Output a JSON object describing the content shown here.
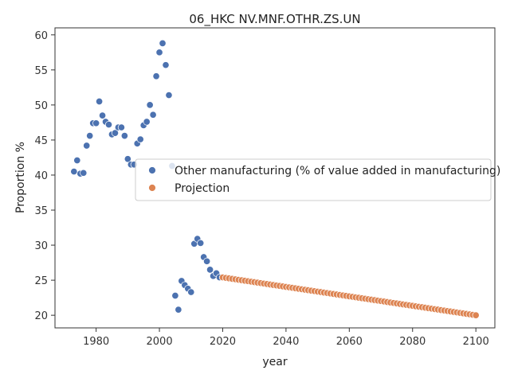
{
  "chart_data": {
    "type": "scatter",
    "title": "06_HKC NV.MNF.OTHR.ZS.UN",
    "xlabel": "year",
    "ylabel": "Proportion %",
    "xlim": [
      1967,
      2106
    ],
    "ylim": [
      18.2,
      61.0
    ],
    "xticks": [
      1980,
      2000,
      2020,
      2040,
      2060,
      2080,
      2100
    ],
    "yticks": [
      20,
      25,
      30,
      35,
      40,
      45,
      50,
      55,
      60
    ],
    "grid": false,
    "legend_position": "center-right",
    "series": [
      {
        "name": "Other manufacturing (% of value added in manufacturing)",
        "color": "#4c72b0",
        "x": [
          1973,
          1974,
          1975,
          1976,
          1977,
          1978,
          1979,
          1980,
          1981,
          1982,
          1983,
          1984,
          1985,
          1986,
          1987,
          1988,
          1989,
          1990,
          1991,
          1992,
          1993,
          1994,
          1995,
          1996,
          1997,
          1998,
          1999,
          2000,
          2001,
          2002,
          2003,
          2004,
          2005,
          2006,
          2007,
          2008,
          2009,
          2010,
          2011,
          2012,
          2013,
          2014,
          2015,
          2016,
          2017,
          2018,
          2019
        ],
        "y": [
          40.5,
          42.1,
          40.2,
          40.3,
          44.2,
          45.6,
          47.4,
          47.4,
          50.5,
          48.5,
          47.6,
          47.2,
          45.8,
          46.0,
          46.8,
          46.8,
          45.6,
          42.3,
          41.5,
          41.5,
          44.5,
          45.1,
          47.1,
          47.6,
          50.0,
          48.6,
          54.1,
          57.5,
          58.8,
          55.7,
          51.4,
          41.3,
          22.8,
          20.8,
          24.9,
          24.3,
          23.8,
          23.3,
          30.2,
          30.9,
          30.3,
          28.3,
          27.7,
          26.5,
          25.6,
          26.0,
          25.4
        ]
      },
      {
        "name": "Projection",
        "color": "#dd8452",
        "x_start": 2020,
        "x_end": 2100,
        "y_start": 25.4,
        "y_end": 20.0
      }
    ]
  }
}
